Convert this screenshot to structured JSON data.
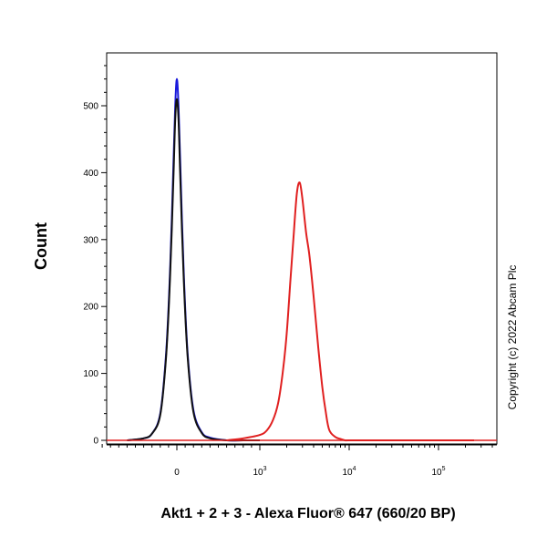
{
  "chart_data": {
    "type": "line",
    "title": "",
    "xlabel": "Akt1 + 2 + 3 - Alexa Fluor® 647 (660/20 BP)",
    "ylabel": "Count",
    "ylim": [
      0,
      570
    ],
    "x_scale": "biexponential",
    "y_ticks": [
      0,
      100,
      200,
      300,
      400,
      500
    ],
    "x_ticks": [
      {
        "base": "0",
        "exp": ""
      },
      {
        "base": "10",
        "exp": "3"
      },
      {
        "base": "10",
        "exp": "4"
      },
      {
        "base": "10",
        "exp": "5"
      }
    ],
    "grid": false,
    "legend": "none",
    "series": [
      {
        "color": "#1a1adc",
        "x": [
          -600,
          -400,
          -300,
          -200,
          -130,
          -80,
          -40,
          -20,
          0,
          20,
          40,
          80,
          130,
          200,
          300,
          400,
          600,
          800,
          1000
        ],
        "y": [
          0,
          3,
          10,
          40,
          130,
          260,
          420,
          500,
          540,
          500,
          420,
          260,
          130,
          45,
          12,
          4,
          0,
          0,
          0
        ]
      },
      {
        "color": "#111111",
        "x": [
          -600,
          -400,
          -300,
          -200,
          -130,
          -80,
          -40,
          -20,
          0,
          20,
          40,
          80,
          130,
          200,
          300,
          400,
          600,
          800,
          1000
        ],
        "y": [
          0,
          3,
          10,
          38,
          125,
          250,
          400,
          480,
          510,
          480,
          400,
          250,
          125,
          42,
          11,
          3,
          0,
          0,
          0
        ]
      },
      {
        "color": "#e02020",
        "x": [
          600,
          800,
          1000,
          1200,
          1400,
          1600,
          1800,
          2000,
          2200,
          2400,
          2600,
          2800,
          3000,
          3300,
          3600,
          4000,
          4500,
          5000,
          5500,
          6000,
          7000,
          8000,
          9000,
          10000,
          20000,
          100000,
          250000
        ],
        "y": [
          0,
          3,
          8,
          15,
          30,
          55,
          100,
          160,
          240,
          310,
          370,
          385,
          360,
          310,
          275,
          215,
          140,
          80,
          40,
          15,
          5,
          2,
          0,
          0,
          0,
          0,
          0
        ]
      }
    ],
    "annotations": [
      "Copyright (c) 2022 Abcam Plc"
    ]
  }
}
